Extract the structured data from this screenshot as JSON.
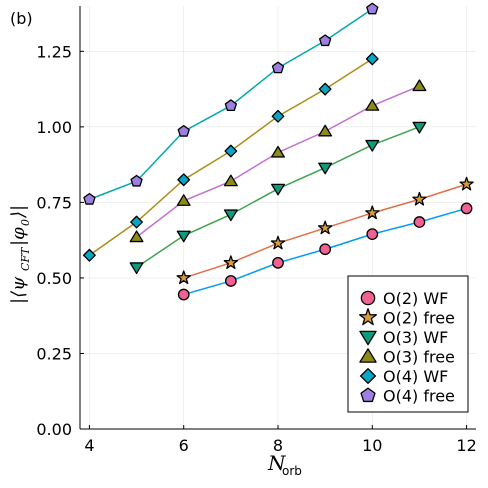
{
  "panel_label": "(b)",
  "chart_data": {
    "type": "line",
    "title": "",
    "xlabel": "N_orb",
    "ylabel": "|⟨ψ_CFT|φ_0⟩|",
    "xlim": [
      3.8,
      12.2
    ],
    "ylim": [
      0,
      1.4
    ],
    "xticks": [
      4,
      6,
      8,
      10,
      12
    ],
    "xtick_labels": [
      "4",
      "6",
      "8",
      "10",
      "12"
    ],
    "yticks": [
      0,
      0.25,
      0.5,
      0.75,
      1.0,
      1.25
    ],
    "ytick_labels": [
      "0.00",
      "0.25",
      "0.50",
      "0.75",
      "1.00",
      "1.25"
    ],
    "grid": true,
    "legend_position": "bottom-right",
    "series": [
      {
        "name": "O(2) WF",
        "marker": "circle",
        "line_color": "#009AFA",
        "marker_color": "#F06292",
        "x": [
          6,
          7,
          8,
          9,
          10,
          11,
          12
        ],
        "y": [
          0.445,
          0.49,
          0.55,
          0.595,
          0.645,
          0.685,
          0.73
        ]
      },
      {
        "name": "O(2) free",
        "marker": "star",
        "line_color": "#E26F46",
        "marker_color": "#D89B3A",
        "x": [
          6,
          7,
          8,
          9,
          10,
          11,
          12
        ],
        "y": [
          0.5,
          0.55,
          0.615,
          0.665,
          0.715,
          0.76,
          0.81
        ]
      },
      {
        "name": "O(3) WF",
        "marker": "triangle-down",
        "line_color": "#3DA44D",
        "marker_color": "#0E9A7C",
        "x": [
          5,
          6,
          7,
          8,
          9,
          10,
          11
        ],
        "y": [
          0.535,
          0.64,
          0.71,
          0.795,
          0.865,
          0.94,
          1.0
        ]
      },
      {
        "name": "O(3) free",
        "marker": "triangle-up",
        "line_color": "#C271D2",
        "marker_color": "#8B8A1A",
        "x": [
          5,
          6,
          7,
          8,
          9,
          10,
          11
        ],
        "y": [
          0.635,
          0.755,
          0.82,
          0.915,
          0.985,
          1.07,
          1.135
        ]
      },
      {
        "name": "O(4) WF",
        "marker": "diamond",
        "line_color": "#AC8D18",
        "marker_color": "#0AA5C2",
        "x": [
          4,
          5,
          6,
          7,
          8,
          9,
          10
        ],
        "y": [
          0.575,
          0.685,
          0.825,
          0.92,
          1.035,
          1.125,
          1.225
        ]
      },
      {
        "name": "O(4) free",
        "marker": "pentagon",
        "line_color": "#00A9AD",
        "marker_color": "#9C7FE0",
        "x": [
          4,
          5,
          6,
          7,
          8,
          9,
          10
        ],
        "y": [
          0.76,
          0.82,
          0.985,
          1.07,
          1.195,
          1.285,
          1.39
        ]
      }
    ]
  }
}
